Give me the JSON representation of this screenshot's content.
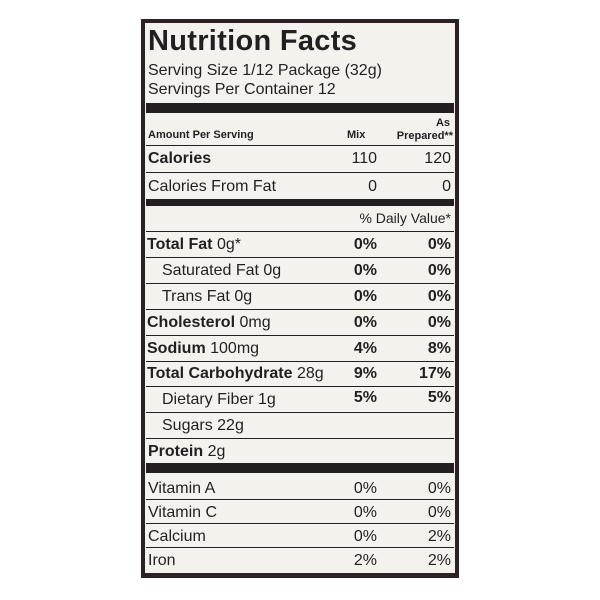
{
  "title": "Nutrition Facts",
  "serving_size": "Serving Size 1/12 Package (32g)",
  "servings_per_container": "Servings Per Container 12",
  "header": {
    "amount_per_serving": "Amount Per Serving",
    "col_mix": "Mix",
    "col_prepared_line1": "As",
    "col_prepared_line2": "Prepared**"
  },
  "calories": {
    "label": "Calories",
    "mix": "110",
    "prepared": "120"
  },
  "calories_from_fat": {
    "label": "Calories From Fat",
    "mix": "0",
    "prepared": "0"
  },
  "daily_value_header": "% Daily Value*",
  "nutrients": [
    {
      "name": "Total Fat",
      "amount": "0g*",
      "mix": "0%",
      "prepared": "0%"
    },
    {
      "name": "Saturated Fat",
      "amount": "0g",
      "mix": "0%",
      "prepared": "0%"
    },
    {
      "name": "Trans Fat",
      "amount": "0g",
      "mix": "0%",
      "prepared": "0%"
    },
    {
      "name": "Cholesterol",
      "amount": "0mg",
      "mix": "0%",
      "prepared": "0%"
    },
    {
      "name": "Sodium",
      "amount": "100mg",
      "mix": "4%",
      "prepared": "8%"
    },
    {
      "name": "Total Carbohydrate",
      "amount": "28g",
      "mix": "9%",
      "prepared": "17%"
    },
    {
      "name": "Dietary Fiber",
      "amount": "1g",
      "mix": "5%",
      "prepared": "5%"
    },
    {
      "name": "Sugars",
      "amount": "22g"
    },
    {
      "name": "Protein",
      "amount": "2g"
    }
  ],
  "vitamins": [
    {
      "name": "Vitamin A",
      "mix": "0%",
      "prepared": "0%"
    },
    {
      "name": "Vitamin C",
      "mix": "0%",
      "prepared": "0%"
    },
    {
      "name": "Calcium",
      "mix": "0%",
      "prepared": "2%"
    },
    {
      "name": "Iron",
      "mix": "2%",
      "prepared": "2%"
    }
  ]
}
